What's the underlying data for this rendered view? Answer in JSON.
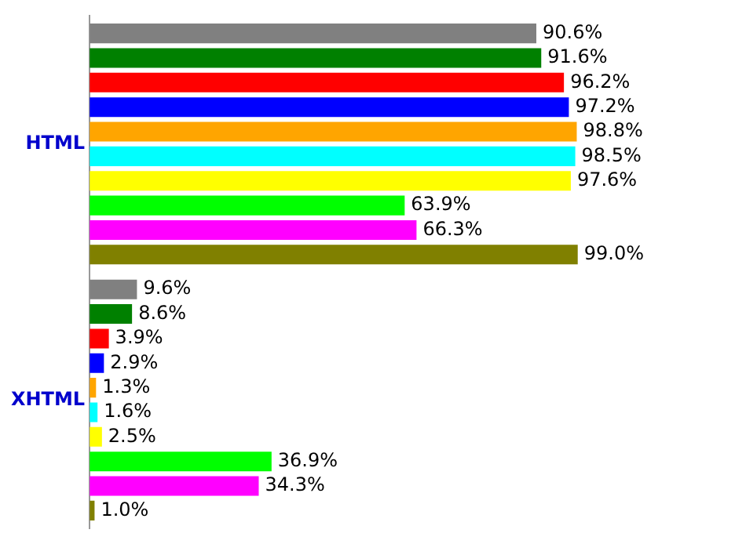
{
  "chart_data": {
    "type": "bar",
    "orientation": "horizontal",
    "categories": [
      "HTML",
      "XHTML"
    ],
    "xlim": [
      0,
      100
    ],
    "tick_labels": "y",
    "legend": false,
    "series": [
      {
        "color": "#808080",
        "values": [
          90.6,
          9.6
        ],
        "value_labels": [
          "90.6%",
          "9.6%"
        ]
      },
      {
        "color": "#008000",
        "values": [
          91.6,
          8.6
        ],
        "value_labels": [
          "91.6%",
          "8.6%"
        ]
      },
      {
        "color": "#ff0000",
        "values": [
          96.2,
          3.9
        ],
        "value_labels": [
          "96.2%",
          "3.9%"
        ]
      },
      {
        "color": "#0000ff",
        "values": [
          97.2,
          2.9
        ],
        "value_labels": [
          "97.2%",
          "2.9%"
        ]
      },
      {
        "color": "#ffa500",
        "values": [
          98.8,
          1.3
        ],
        "value_labels": [
          "98.8%",
          "1.3%"
        ]
      },
      {
        "color": "#00ffff",
        "values": [
          98.5,
          1.6
        ],
        "value_labels": [
          "98.5%",
          "1.6%"
        ]
      },
      {
        "color": "#ffff00",
        "values": [
          97.6,
          2.5
        ],
        "value_labels": [
          "97.6%",
          "2.5%"
        ]
      },
      {
        "color": "#00ff00",
        "values": [
          63.9,
          36.9
        ],
        "value_labels": [
          "63.9%",
          "36.9%"
        ]
      },
      {
        "color": "#ff00ff",
        "values": [
          66.3,
          34.3
        ],
        "value_labels": [
          "66.3%",
          "34.3%"
        ]
      },
      {
        "color": "#808000",
        "values": [
          99.0,
          1.0
        ],
        "value_labels": [
          "99.0%",
          "1.0%"
        ]
      }
    ]
  }
}
